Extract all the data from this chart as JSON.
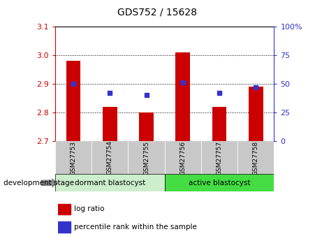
{
  "title": "GDS752 / 15628",
  "samples": [
    "GSM27753",
    "GSM27754",
    "GSM27755",
    "GSM27756",
    "GSM27757",
    "GSM27758"
  ],
  "log_ratio": [
    2.98,
    2.82,
    2.8,
    3.01,
    2.82,
    2.89
  ],
  "log_ratio_base": 2.7,
  "percentile_rank": [
    50,
    42,
    40,
    51,
    42,
    47
  ],
  "ylim_left": [
    2.7,
    3.1
  ],
  "ylim_right": [
    0,
    100
  ],
  "yticks_left": [
    2.7,
    2.8,
    2.9,
    3.0,
    3.1
  ],
  "yticks_right": [
    0,
    25,
    50,
    75,
    100
  ],
  "ytick_labels_right": [
    "0",
    "25",
    "50",
    "75",
    "100%"
  ],
  "bar_color": "#cc0000",
  "dot_color": "#3333cc",
  "group1_label": "dormant blastocyst",
  "group2_label": "active blastocyst",
  "group1_color": "#cceecc",
  "group2_color": "#44dd44",
  "stage_label": "development stage",
  "legend_bar": "log ratio",
  "legend_dot": "percentile rank within the sample",
  "left_axis_color": "#cc0000",
  "right_axis_color": "#3333cc",
  "sample_box_color": "#c8c8c8",
  "bar_width": 0.4
}
